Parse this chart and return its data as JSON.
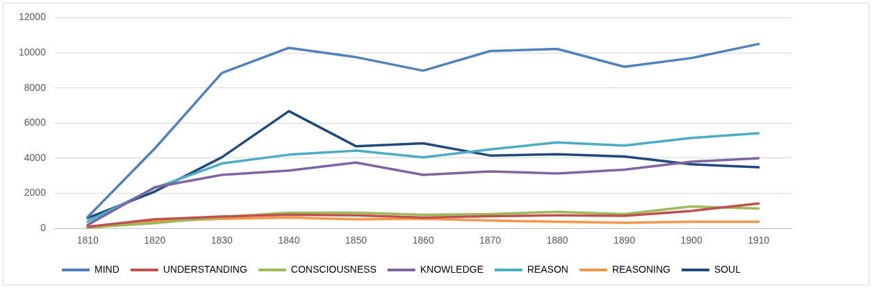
{
  "chart_data": {
    "type": "line",
    "categories": [
      "1810",
      "1820",
      "1830",
      "1840",
      "1850",
      "1860",
      "1870",
      "1880",
      "1890",
      "1900",
      "1910"
    ],
    "ylim": [
      0,
      12000
    ],
    "yticks": [
      0,
      2000,
      4000,
      6000,
      8000,
      10000,
      12000
    ],
    "grid": "y",
    "legend": "bottom",
    "marker": "none",
    "line_style": "solid",
    "series": [
      {
        "name": "MIND",
        "color": "#4f81bd",
        "values": [
          650,
          4550,
          8850,
          10280,
          9750,
          8980,
          10100,
          10220,
          9200,
          9700,
          10500
        ]
      },
      {
        "name": "UNDERSTANDING",
        "color": "#c0504d",
        "values": [
          100,
          520,
          680,
          780,
          750,
          620,
          700,
          750,
          720,
          1000,
          1420
        ]
      },
      {
        "name": "CONSCIOUSNESS",
        "color": "#9bbb59",
        "values": [
          50,
          300,
          650,
          900,
          900,
          780,
          820,
          950,
          820,
          1250,
          1130
        ]
      },
      {
        "name": "KNOWLEDGE",
        "color": "#8064a2",
        "values": [
          200,
          2350,
          3050,
          3300,
          3750,
          3050,
          3250,
          3130,
          3350,
          3800,
          4000
        ]
      },
      {
        "name": "REASON",
        "color": "#4bacc6",
        "values": [
          400,
          2300,
          3700,
          4200,
          4430,
          4050,
          4500,
          4900,
          4720,
          5150,
          5420
        ]
      },
      {
        "name": "REASONING",
        "color": "#f79646",
        "values": [
          50,
          400,
          550,
          620,
          520,
          550,
          450,
          380,
          320,
          380,
          380
        ]
      },
      {
        "name": "SOUL",
        "color": "#1f497d",
        "values": [
          600,
          2100,
          4050,
          6680,
          4680,
          4850,
          4150,
          4220,
          4100,
          3650,
          3480
        ]
      }
    ]
  }
}
